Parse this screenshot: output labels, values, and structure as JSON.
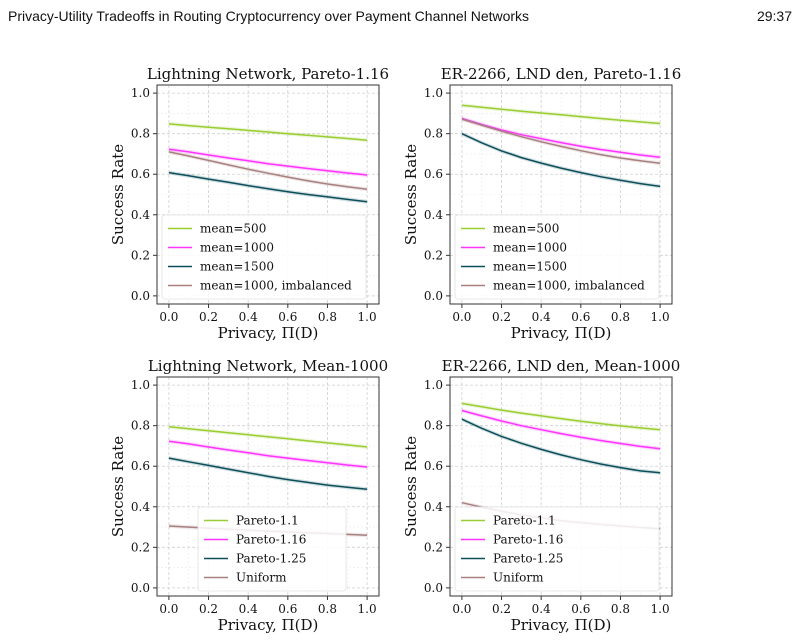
{
  "header": {
    "paper_title": "Privacy-Utility Tradeoffs in Routing Cryptocurrency over Payment Channel Networks",
    "page_number": "29:37"
  },
  "colors": {
    "green": "#9acd32",
    "magenta": "#ff33ff",
    "teal": "#0b4f5a",
    "mauve": "#a88080"
  },
  "chart_data": [
    {
      "type": "line",
      "title": "Lightning Network, Pareto-1.16",
      "xlabel": "Privacy, Π(D)",
      "ylabel": "Success Rate",
      "xlim": [
        -0.06,
        1.06
      ],
      "ylim": [
        -0.04,
        1.04
      ],
      "xticks": [
        "0.0",
        "0.2",
        "0.4",
        "0.6",
        "0.8",
        "1.0"
      ],
      "yticks": [
        "0.0",
        "0.2",
        "0.4",
        "0.6",
        "0.8",
        "1.0"
      ],
      "grid": true,
      "legend_position": "lower-left",
      "x": [
        0.0,
        0.1,
        0.2,
        0.3,
        0.4,
        0.5,
        0.6,
        0.7,
        0.8,
        0.9,
        1.0
      ],
      "series": [
        {
          "name": "mean=500",
          "color": "#9acd32",
          "values": [
            0.848,
            0.84,
            0.832,
            0.824,
            0.816,
            0.808,
            0.8,
            0.792,
            0.784,
            0.776,
            0.768
          ]
        },
        {
          "name": "mean=1000",
          "color": "#ff33ff",
          "values": [
            0.723,
            0.71,
            0.695,
            0.68,
            0.666,
            0.652,
            0.64,
            0.628,
            0.617,
            0.606,
            0.596
          ]
        },
        {
          "name": "mean=1500",
          "color": "#0b4f5a",
          "values": [
            0.608,
            0.592,
            0.576,
            0.56,
            0.544,
            0.528,
            0.514,
            0.5,
            0.488,
            0.476,
            0.464
          ]
        },
        {
          "name": "mean=1000, imbalanced",
          "color": "#a88080",
          "values": [
            0.71,
            0.69,
            0.668,
            0.646,
            0.625,
            0.605,
            0.586,
            0.568,
            0.552,
            0.538,
            0.526
          ]
        }
      ]
    },
    {
      "type": "line",
      "title": "ER-2266, LND den, Pareto-1.16",
      "xlabel": "Privacy, Π(D)",
      "ylabel": "Success Rate",
      "xlim": [
        -0.06,
        1.06
      ],
      "ylim": [
        -0.04,
        1.04
      ],
      "xticks": [
        "0.0",
        "0.2",
        "0.4",
        "0.6",
        "0.8",
        "1.0"
      ],
      "yticks": [
        "0.0",
        "0.2",
        "0.4",
        "0.6",
        "0.8",
        "1.0"
      ],
      "grid": true,
      "legend_position": "lower-left",
      "x": [
        0.0,
        0.1,
        0.2,
        0.3,
        0.4,
        0.5,
        0.6,
        0.7,
        0.8,
        0.9,
        1.0
      ],
      "series": [
        {
          "name": "mean=500",
          "color": "#9acd32",
          "values": [
            0.94,
            0.93,
            0.92,
            0.911,
            0.902,
            0.893,
            0.884,
            0.875,
            0.866,
            0.858,
            0.85
          ]
        },
        {
          "name": "mean=1000",
          "color": "#ff33ff",
          "values": [
            0.875,
            0.845,
            0.818,
            0.795,
            0.775,
            0.756,
            0.738,
            0.722,
            0.708,
            0.695,
            0.684
          ]
        },
        {
          "name": "mean=1500",
          "color": "#0b4f5a",
          "values": [
            0.8,
            0.755,
            0.715,
            0.682,
            0.655,
            0.63,
            0.608,
            0.588,
            0.57,
            0.554,
            0.54
          ]
        },
        {
          "name": "mean=1000, imbalanced",
          "color": "#a88080",
          "values": [
            0.872,
            0.842,
            0.812,
            0.785,
            0.76,
            0.737,
            0.716,
            0.697,
            0.68,
            0.666,
            0.654
          ]
        }
      ]
    },
    {
      "type": "line",
      "title": "Lightning Network, Mean-1000",
      "xlabel": "Privacy, Π(D)",
      "ylabel": "Success Rate",
      "xlim": [
        -0.06,
        1.06
      ],
      "ylim": [
        -0.04,
        1.04
      ],
      "xticks": [
        "0.0",
        "0.2",
        "0.4",
        "0.6",
        "0.8",
        "1.0"
      ],
      "yticks": [
        "0.0",
        "0.2",
        "0.4",
        "0.6",
        "0.8",
        "1.0"
      ],
      "grid": true,
      "legend_position": "lower-center",
      "x": [
        0.0,
        0.1,
        0.2,
        0.3,
        0.4,
        0.5,
        0.6,
        0.7,
        0.8,
        0.9,
        1.0
      ],
      "series": [
        {
          "name": "Pareto-1.1",
          "color": "#9acd32",
          "values": [
            0.795,
            0.785,
            0.775,
            0.765,
            0.755,
            0.745,
            0.735,
            0.725,
            0.715,
            0.705,
            0.695
          ]
        },
        {
          "name": "Pareto-1.16",
          "color": "#ff33ff",
          "values": [
            0.723,
            0.71,
            0.695,
            0.68,
            0.666,
            0.652,
            0.64,
            0.628,
            0.617,
            0.606,
            0.596
          ]
        },
        {
          "name": "Pareto-1.25",
          "color": "#0b4f5a",
          "values": [
            0.64,
            0.622,
            0.604,
            0.586,
            0.568,
            0.55,
            0.534,
            0.52,
            0.507,
            0.496,
            0.486
          ]
        },
        {
          "name": "Uniform",
          "color": "#a88080",
          "values": [
            0.305,
            0.3,
            0.295,
            0.29,
            0.285,
            0.28,
            0.276,
            0.272,
            0.268,
            0.264,
            0.26
          ]
        }
      ]
    },
    {
      "type": "line",
      "title": "ER-2266, LND den, Mean-1000",
      "xlabel": "Privacy, Π(D)",
      "ylabel": "Success Rate",
      "xlim": [
        -0.06,
        1.06
      ],
      "ylim": [
        -0.04,
        1.04
      ],
      "xticks": [
        "0.0",
        "0.2",
        "0.4",
        "0.6",
        "0.8",
        "1.0"
      ],
      "yticks": [
        "0.0",
        "0.2",
        "0.4",
        "0.6",
        "0.8",
        "1.0"
      ],
      "grid": true,
      "legend_position": "lower-left",
      "x": [
        0.0,
        0.1,
        0.2,
        0.3,
        0.4,
        0.5,
        0.6,
        0.7,
        0.8,
        0.9,
        1.0
      ],
      "series": [
        {
          "name": "Pareto-1.1",
          "color": "#9acd32",
          "values": [
            0.91,
            0.893,
            0.877,
            0.862,
            0.848,
            0.835,
            0.822,
            0.81,
            0.799,
            0.789,
            0.78
          ]
        },
        {
          "name": "Pareto-1.16",
          "color": "#ff33ff",
          "values": [
            0.875,
            0.848,
            0.823,
            0.8,
            0.78,
            0.761,
            0.743,
            0.727,
            0.712,
            0.698,
            0.686
          ]
        },
        {
          "name": "Pareto-1.25",
          "color": "#0b4f5a",
          "values": [
            0.832,
            0.787,
            0.747,
            0.713,
            0.683,
            0.656,
            0.632,
            0.611,
            0.593,
            0.577,
            0.568
          ]
        },
        {
          "name": "Uniform",
          "color": "#a88080",
          "values": [
            0.42,
            0.398,
            0.378,
            0.36,
            0.345,
            0.332,
            0.322,
            0.313,
            0.305,
            0.298,
            0.292
          ]
        }
      ]
    }
  ]
}
